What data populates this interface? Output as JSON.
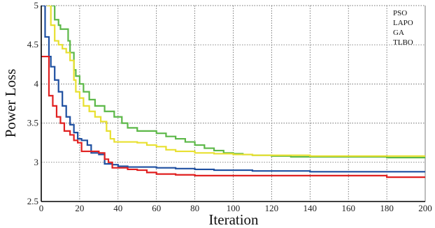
{
  "chart_data": {
    "type": "line",
    "title": "",
    "xlabel": "Iteration",
    "ylabel": "Power Loss",
    "xlim": [
      0,
      200
    ],
    "ylim": [
      2.5,
      5
    ],
    "xticks": [
      0,
      20,
      40,
      60,
      80,
      100,
      120,
      140,
      160,
      180,
      200
    ],
    "yticks": [
      2.5,
      3,
      3.5,
      4,
      4.5,
      5
    ],
    "grid": true,
    "legend_position": "top-right",
    "legend": [
      "PSO",
      "LAPO",
      "GA",
      "TLBO"
    ],
    "series": [
      {
        "name": "green",
        "color": "#5cb848",
        "x": [
          5,
          7,
          9,
          10,
          14,
          15,
          17,
          18,
          20,
          22,
          25,
          28,
          33,
          38,
          42,
          45,
          50,
          60,
          65,
          70,
          75,
          80,
          85,
          90,
          95,
          100,
          105,
          110,
          120,
          130,
          140,
          160,
          180,
          200
        ],
        "y": [
          5.0,
          4.82,
          4.75,
          4.7,
          4.55,
          4.4,
          4.18,
          4.1,
          4.0,
          3.9,
          3.8,
          3.72,
          3.65,
          3.58,
          3.5,
          3.44,
          3.4,
          3.37,
          3.33,
          3.3,
          3.26,
          3.22,
          3.18,
          3.15,
          3.12,
          3.11,
          3.1,
          3.09,
          3.08,
          3.07,
          3.07,
          3.07,
          3.06,
          3.06
        ]
      },
      {
        "name": "yellow",
        "color": "#e8e030",
        "x": [
          3,
          5,
          7,
          9,
          11,
          13,
          15,
          17,
          18,
          20,
          22,
          25,
          28,
          31,
          34,
          36,
          38,
          40,
          50,
          55,
          60,
          65,
          70,
          80,
          90,
          100,
          110,
          120,
          140,
          160,
          180,
          200
        ],
        "y": [
          5.0,
          4.75,
          4.55,
          4.5,
          4.45,
          4.4,
          4.3,
          4.05,
          3.9,
          3.82,
          3.72,
          3.65,
          3.58,
          3.52,
          3.4,
          3.3,
          3.26,
          3.26,
          3.25,
          3.22,
          3.2,
          3.16,
          3.14,
          3.12,
          3.11,
          3.1,
          3.09,
          3.09,
          3.08,
          3.08,
          3.08,
          3.08
        ]
      },
      {
        "name": "blue",
        "color": "#1e4fa0",
        "x": [
          0,
          2,
          4,
          5,
          7,
          9,
          11,
          13,
          15,
          17,
          19,
          21,
          24,
          26,
          30,
          33,
          35,
          37,
          40,
          45,
          50,
          60,
          70,
          80,
          90,
          100,
          110,
          120,
          140,
          160,
          180,
          200
        ],
        "y": [
          5.0,
          4.6,
          4.35,
          4.22,
          4.05,
          3.9,
          3.72,
          3.58,
          3.48,
          3.38,
          3.3,
          3.28,
          3.22,
          3.12,
          3.1,
          2.98,
          2.98,
          2.97,
          2.95,
          2.94,
          2.94,
          2.93,
          2.92,
          2.91,
          2.9,
          2.9,
          2.89,
          2.89,
          2.88,
          2.88,
          2.88,
          2.87
        ]
      },
      {
        "name": "red",
        "color": "#e02020",
        "x": [
          0,
          2,
          4,
          6,
          8,
          10,
          12,
          15,
          17,
          19,
          21,
          25,
          30,
          33,
          35,
          37,
          40,
          45,
          50,
          55,
          60,
          70,
          80,
          90,
          100,
          120,
          140,
          160,
          175,
          180,
          200
        ],
        "y": [
          4.35,
          4.35,
          3.85,
          3.72,
          3.58,
          3.5,
          3.4,
          3.35,
          3.28,
          3.25,
          3.14,
          3.14,
          3.12,
          3.04,
          3.0,
          2.93,
          2.93,
          2.91,
          2.9,
          2.87,
          2.85,
          2.84,
          2.83,
          2.83,
          2.83,
          2.83,
          2.83,
          2.83,
          2.83,
          2.81,
          2.81
        ]
      }
    ]
  }
}
